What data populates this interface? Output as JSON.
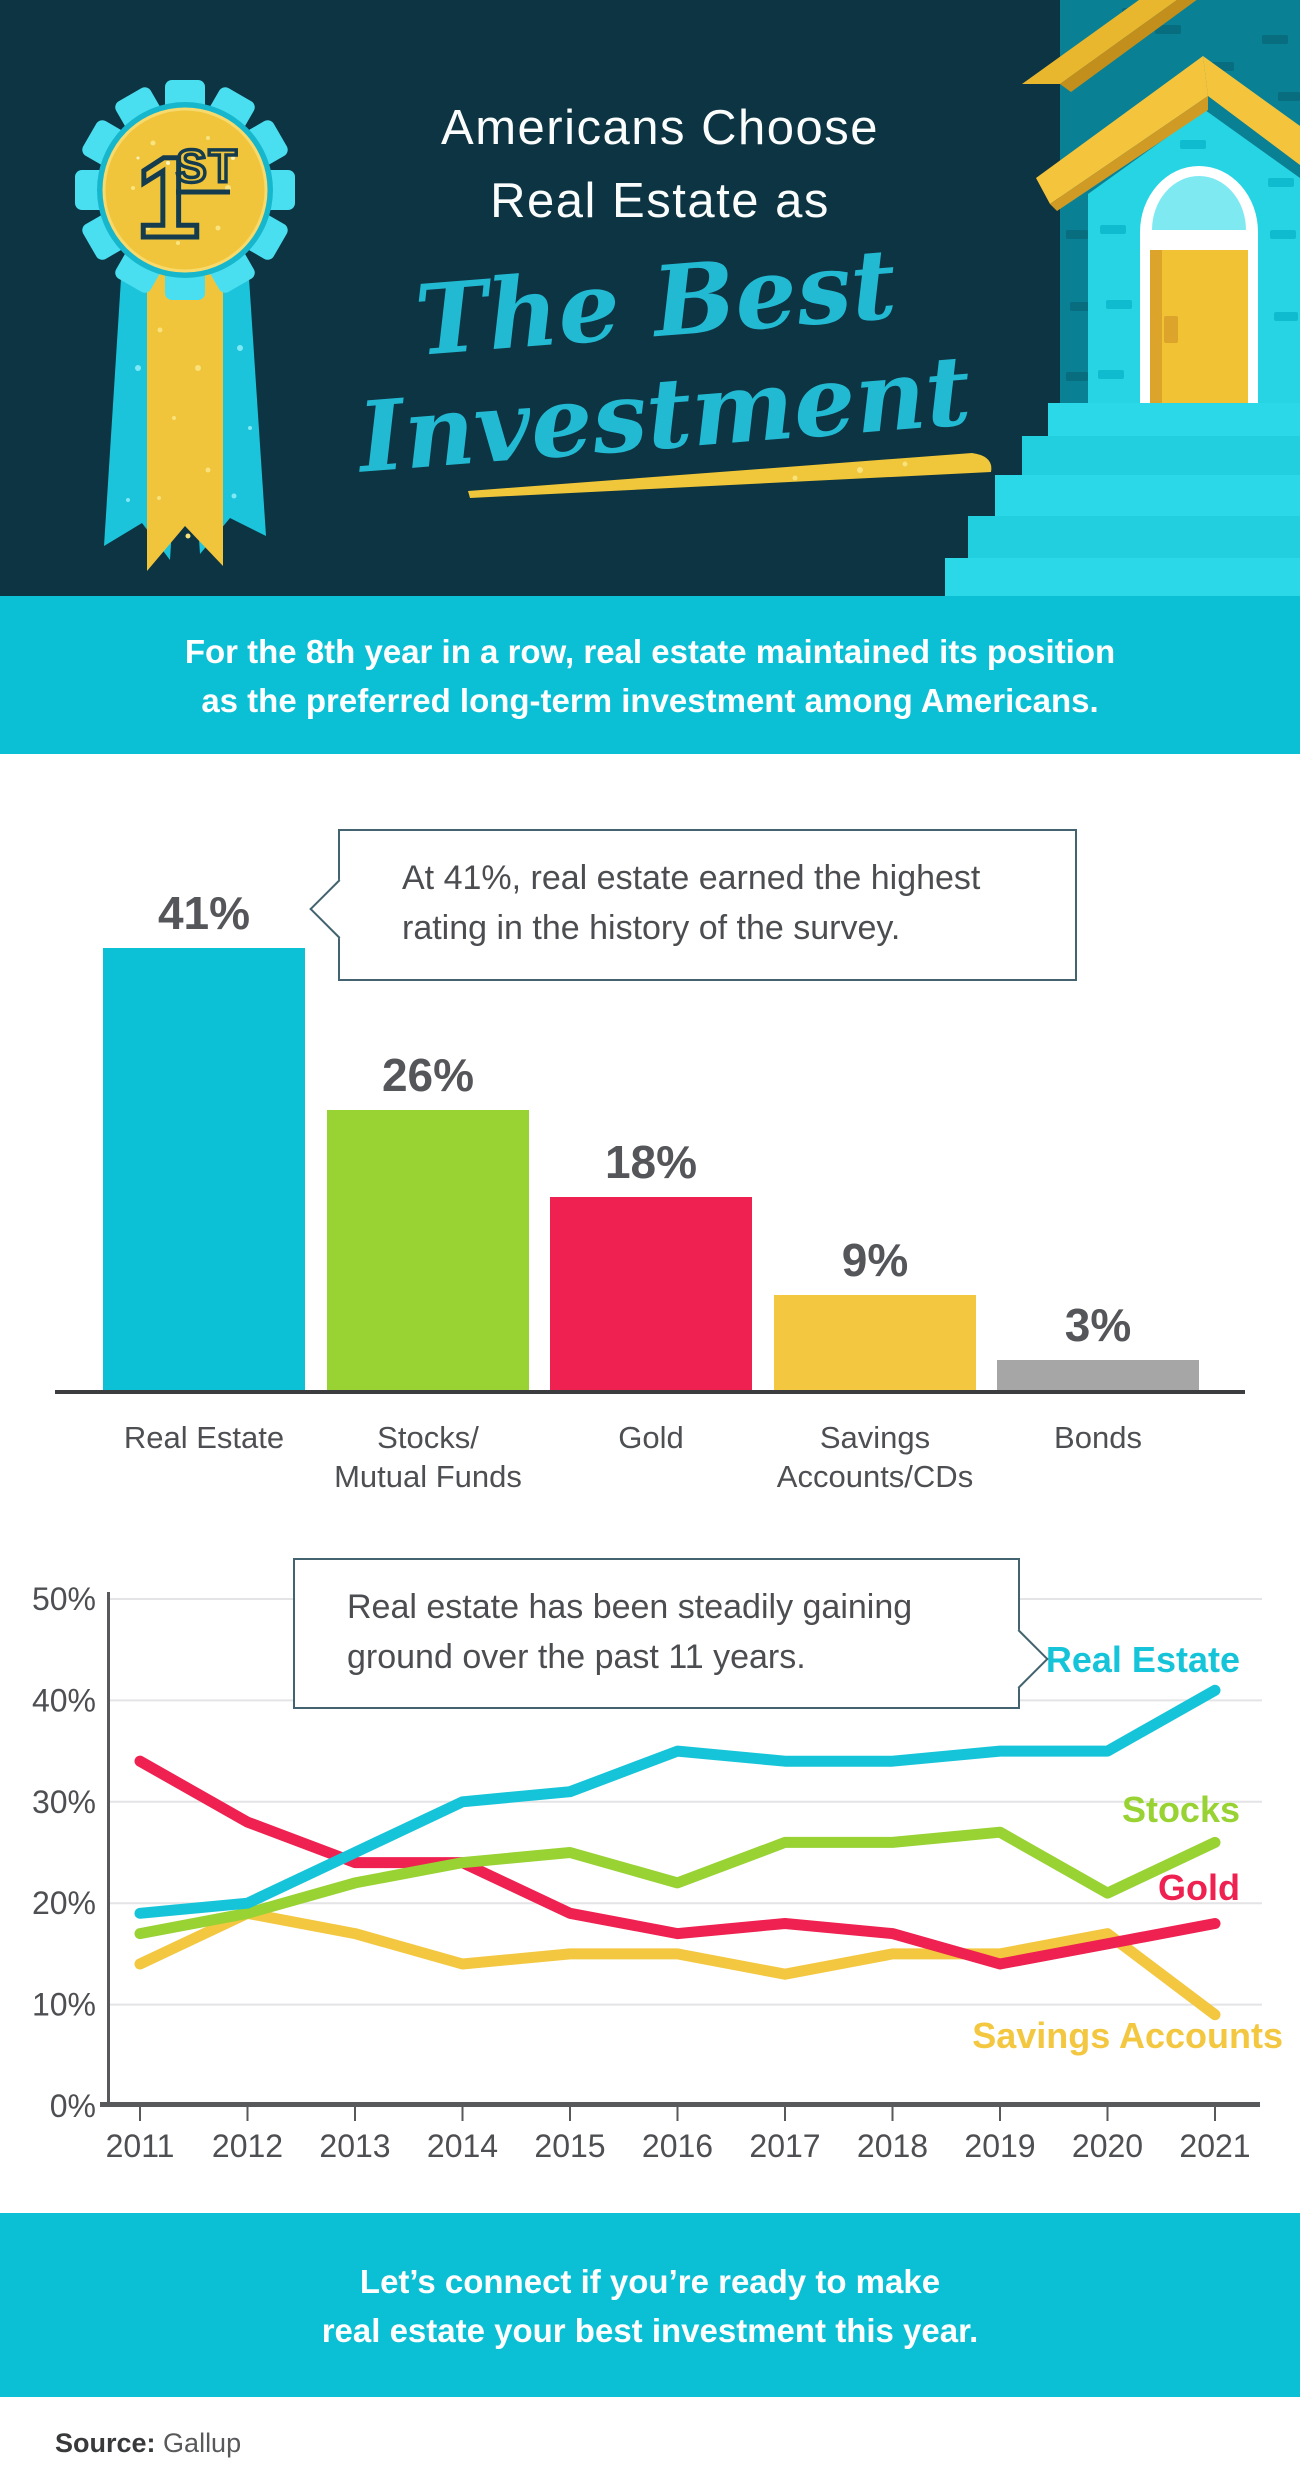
{
  "header": {
    "title_line1": "Americans Choose",
    "title_line2": "Real Estate as",
    "script_line1": "The Best",
    "script_line2": "Investment",
    "badge_number": "1",
    "badge_suffix": "ST"
  },
  "banner_top": {
    "line1": "For the 8th year in a row, real estate maintained its position",
    "line2": "as the preferred long-term investment among Americans."
  },
  "bar_section": {
    "callout_line1": "At 41%, real estate earned the highest",
    "callout_line2": "rating in the history of the survey."
  },
  "line_section": {
    "callout_line1": "Real estate has been steadily gaining",
    "callout_line2": "ground over the past 11 years."
  },
  "banner_bottom": {
    "line1": "Let’s connect if you’re ready to make",
    "line2": "real estate your best investment this year."
  },
  "footer": {
    "source_label": "Source:",
    "source_value": "Gallup"
  },
  "colors": {
    "header_bg": "#0d3442",
    "banner_cyan": "#0bc0d5",
    "script_cyan": "#22b9d3",
    "gold": "#f0c53c",
    "bar_cyan": "#0cc0d6",
    "bar_green": "#98d233",
    "bar_red": "#ee2150",
    "bar_yellow": "#f3c740",
    "bar_gray": "#a6a6a6",
    "text_dark": "#4d4f52",
    "callout_border": "#42636f",
    "gridline": "#e4e4e6",
    "axis_gray": "#58595b"
  },
  "chart_data": [
    {
      "type": "bar",
      "title": "",
      "annotation": "At 41%, real estate earned the highest rating in the history of the survey.",
      "categories": [
        "Real Estate",
        "Stocks/Mutual Funds",
        "Gold",
        "Savings Accounts/CDs",
        "Bonds"
      ],
      "category_lines": [
        [
          "Real Estate"
        ],
        [
          "Stocks/",
          "Mutual Funds"
        ],
        [
          "Gold"
        ],
        [
          "Savings",
          "Accounts/CDs"
        ],
        [
          "Bonds"
        ]
      ],
      "values": [
        41,
        26,
        18,
        9,
        3
      ],
      "value_labels": [
        "41%",
        "26%",
        "18%",
        "9%",
        "3%"
      ],
      "colors": [
        "#0cc0d6",
        "#98d233",
        "#ee2150",
        "#f3c740",
        "#a6a6a6"
      ],
      "xlabel": "",
      "ylabel": "",
      "ylim": [
        0,
        45
      ],
      "grid": false
    },
    {
      "type": "line",
      "title": "",
      "annotation": "Real estate has been steadily gaining ground over the past 11 years.",
      "x": [
        2011,
        2012,
        2013,
        2014,
        2015,
        2016,
        2017,
        2018,
        2019,
        2020,
        2021
      ],
      "series": [
        {
          "name": "Real Estate",
          "color": "#16c4d9",
          "values": [
            19,
            20,
            25,
            30,
            31,
            35,
            34,
            34,
            35,
            35,
            41
          ]
        },
        {
          "name": "Stocks",
          "color": "#98d233",
          "values": [
            17,
            19,
            22,
            24,
            25,
            22,
            26,
            26,
            27,
            21,
            26
          ]
        },
        {
          "name": "Gold",
          "color": "#ee2150",
          "values": [
            34,
            28,
            24,
            24,
            19,
            17,
            18,
            17,
            14,
            16,
            18
          ]
        },
        {
          "name": "Savings Accounts",
          "color": "#f3c740",
          "values": [
            14,
            19,
            17,
            14,
            15,
            15,
            13,
            15,
            15,
            17,
            9
          ]
        }
      ],
      "y_ticks": [
        {
          "label": "0%",
          "value": 0
        },
        {
          "label": "10%",
          "value": 10
        },
        {
          "label": "20%",
          "value": 20
        },
        {
          "label": "30%",
          "value": 30
        },
        {
          "label": "40%",
          "value": 40
        },
        {
          "label": "50%",
          "value": 50
        }
      ],
      "ylim": [
        0,
        50
      ],
      "grid": true,
      "legend_position": "right-inline"
    }
  ]
}
